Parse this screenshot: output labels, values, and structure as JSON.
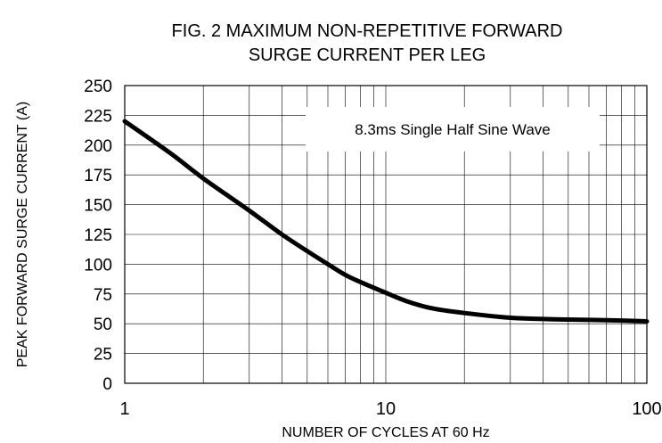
{
  "chart_data": {
    "type": "line",
    "title_lines": [
      "FIG. 2 MAXIMUM  NON-REPETITIVE FORWARD",
      "SURGE CURRENT PER LEG"
    ],
    "xlabel": "NUMBER OF CYCLES AT 60 Hz",
    "ylabel": "PEAK FORWARD SURGE CURRENT (A)",
    "x_scale": "log",
    "xlim": [
      1,
      100
    ],
    "ylim": [
      0,
      250
    ],
    "x_ticks": [
      1,
      10,
      100
    ],
    "x_tick_labels": [
      "1",
      "10",
      "100"
    ],
    "y_ticks": [
      0,
      25,
      50,
      75,
      100,
      125,
      150,
      175,
      200,
      225,
      250
    ],
    "y_tick_labels": [
      "0",
      "25",
      "50",
      "75",
      "100",
      "125",
      "150",
      "175",
      "200",
      "225",
      "250"
    ],
    "grid": true,
    "annotations": [
      {
        "text": "8.3ms Single Half Sine Wave"
      }
    ],
    "series": [
      {
        "x": [
          1,
          1.5,
          2,
          3,
          4,
          5,
          6,
          7,
          8,
          10,
          12,
          15,
          20,
          30,
          40,
          50,
          70,
          100
        ],
        "values": [
          220,
          193,
          172,
          145,
          125,
          111,
          100,
          91,
          85,
          76,
          69,
          63,
          59,
          55,
          54,
          53.5,
          53,
          52
        ]
      }
    ],
    "colors": {
      "line": "#000000",
      "grid": "#000000",
      "background": "#ffffff"
    }
  }
}
